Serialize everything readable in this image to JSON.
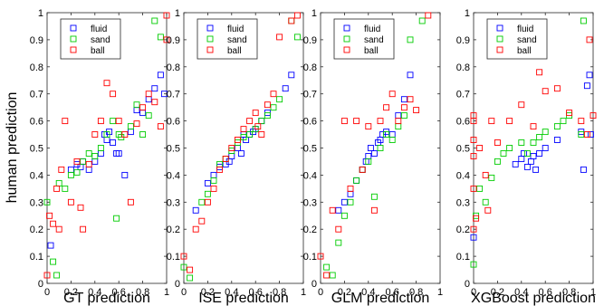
{
  "chart_data": [
    {
      "type": "scatter",
      "xlabel": "GT prediction",
      "ylabel": "human prediction",
      "xlim": [
        0,
        1
      ],
      "ylim": [
        0,
        1
      ],
      "xticks": [
        "0",
        "0.2",
        "0.4",
        "0.6",
        "0.8",
        "1"
      ],
      "yticks": [
        "0",
        "0.1",
        "0.2",
        "0.3",
        "0.4",
        "0.5",
        "0.6",
        "0.7",
        "0.8",
        "0.9",
        "1"
      ],
      "legend_position": "top-left",
      "series": [
        {
          "name": "fluid",
          "color": "#0000ff",
          "points": [
            [
              0.03,
              0.14
            ],
            [
              0.2,
              0.42
            ],
            [
              0.25,
              0.44
            ],
            [
              0.28,
              0.43
            ],
            [
              0.3,
              0.45
            ],
            [
              0.35,
              0.42
            ],
            [
              0.4,
              0.45
            ],
            [
              0.45,
              0.48
            ],
            [
              0.48,
              0.55
            ],
            [
              0.5,
              0.53
            ],
            [
              0.52,
              0.56
            ],
            [
              0.55,
              0.52
            ],
            [
              0.58,
              0.48
            ],
            [
              0.6,
              0.48
            ],
            [
              0.65,
              0.4
            ],
            [
              0.7,
              0.56
            ],
            [
              0.75,
              0.64
            ],
            [
              0.8,
              0.63
            ],
            [
              0.85,
              0.68
            ],
            [
              0.9,
              0.72
            ],
            [
              0.95,
              0.77
            ],
            [
              0.98,
              0.7
            ]
          ]
        },
        {
          "name": "sand",
          "color": "#00cc00",
          "points": [
            [
              0.0,
              0.3
            ],
            [
              0.05,
              0.08
            ],
            [
              0.08,
              0.03
            ],
            [
              0.1,
              0.37
            ],
            [
              0.15,
              0.35
            ],
            [
              0.2,
              0.4
            ],
            [
              0.25,
              0.41
            ],
            [
              0.3,
              0.45
            ],
            [
              0.35,
              0.48
            ],
            [
              0.4,
              0.47
            ],
            [
              0.45,
              0.5
            ],
            [
              0.5,
              0.55
            ],
            [
              0.55,
              0.6
            ],
            [
              0.58,
              0.24
            ],
            [
              0.6,
              0.55
            ],
            [
              0.62,
              0.54
            ],
            [
              0.7,
              0.58
            ],
            [
              0.75,
              0.66
            ],
            [
              0.8,
              0.55
            ],
            [
              0.85,
              0.62
            ],
            [
              0.9,
              0.97
            ],
            [
              0.95,
              0.91
            ]
          ]
        },
        {
          "name": "ball",
          "color": "#ff0000",
          "points": [
            [
              0.0,
              0.03
            ],
            [
              0.02,
              0.25
            ],
            [
              0.05,
              0.22
            ],
            [
              0.08,
              0.35
            ],
            [
              0.1,
              0.2
            ],
            [
              0.12,
              0.42
            ],
            [
              0.15,
              0.6
            ],
            [
              0.2,
              0.3
            ],
            [
              0.25,
              0.45
            ],
            [
              0.28,
              0.28
            ],
            [
              0.3,
              0.2
            ],
            [
              0.35,
              0.44
            ],
            [
              0.4,
              0.55
            ],
            [
              0.45,
              0.6
            ],
            [
              0.5,
              0.74
            ],
            [
              0.55,
              0.7
            ],
            [
              0.6,
              0.6
            ],
            [
              0.65,
              0.55
            ],
            [
              0.7,
              0.3
            ],
            [
              0.75,
              0.59
            ],
            [
              0.8,
              0.65
            ],
            [
              0.85,
              0.7
            ],
            [
              0.9,
              0.67
            ],
            [
              0.95,
              0.58
            ],
            [
              1.0,
              0.9
            ],
            [
              1.0,
              0.99
            ]
          ]
        }
      ]
    },
    {
      "type": "scatter",
      "xlabel": "ISE prediction",
      "ylabel": "",
      "xlim": [
        0,
        1
      ],
      "ylim": [
        0,
        1
      ],
      "xticks": [
        "0",
        "0.2",
        "0.4",
        "0.6",
        "0.8",
        "1"
      ],
      "yticks": [
        "0",
        "0.1",
        "0.2",
        "0.3",
        "0.4",
        "0.5",
        "0.6",
        "0.7",
        "0.8",
        "0.9",
        "1"
      ],
      "legend_position": "top-left",
      "series": [
        {
          "name": "fluid",
          "color": "#0000ff",
          "points": [
            [
              0.1,
              0.27
            ],
            [
              0.2,
              0.37
            ],
            [
              0.25,
              0.4
            ],
            [
              0.3,
              0.43
            ],
            [
              0.35,
              0.44
            ],
            [
              0.38,
              0.45
            ],
            [
              0.4,
              0.47
            ],
            [
              0.45,
              0.5
            ],
            [
              0.48,
              0.48
            ],
            [
              0.5,
              0.55
            ],
            [
              0.52,
              0.53
            ],
            [
              0.55,
              0.55
            ],
            [
              0.58,
              0.56
            ],
            [
              0.6,
              0.57
            ],
            [
              0.65,
              0.6
            ],
            [
              0.7,
              0.63
            ],
            [
              0.85,
              0.72
            ],
            [
              0.9,
              0.77
            ]
          ]
        },
        {
          "name": "sand",
          "color": "#00cc00",
          "points": [
            [
              0.0,
              0.06
            ],
            [
              0.05,
              0.02
            ],
            [
              0.15,
              0.3
            ],
            [
              0.2,
              0.33
            ],
            [
              0.25,
              0.38
            ],
            [
              0.3,
              0.44
            ],
            [
              0.35,
              0.46
            ],
            [
              0.4,
              0.49
            ],
            [
              0.45,
              0.52
            ],
            [
              0.5,
              0.54
            ],
            [
              0.55,
              0.55
            ],
            [
              0.6,
              0.57
            ],
            [
              0.65,
              0.6
            ],
            [
              0.7,
              0.62
            ],
            [
              0.75,
              0.65
            ],
            [
              0.8,
              0.68
            ],
            [
              0.9,
              0.97
            ],
            [
              0.95,
              0.91
            ]
          ]
        },
        {
          "name": "ball",
          "color": "#ff0000",
          "points": [
            [
              0.0,
              0.1
            ],
            [
              0.05,
              0.05
            ],
            [
              0.1,
              0.2
            ],
            [
              0.15,
              0.23
            ],
            [
              0.2,
              0.3
            ],
            [
              0.25,
              0.35
            ],
            [
              0.3,
              0.42
            ],
            [
              0.35,
              0.46
            ],
            [
              0.4,
              0.5
            ],
            [
              0.45,
              0.53
            ],
            [
              0.5,
              0.57
            ],
            [
              0.55,
              0.6
            ],
            [
              0.6,
              0.63
            ],
            [
              0.62,
              0.58
            ],
            [
              0.65,
              0.55
            ],
            [
              0.7,
              0.66
            ],
            [
              0.75,
              0.7
            ],
            [
              0.8,
              0.91
            ],
            [
              0.9,
              0.97
            ],
            [
              0.95,
              0.99
            ]
          ]
        }
      ]
    },
    {
      "type": "scatter",
      "xlabel": "GLM prediction",
      "ylabel": "",
      "xlim": [
        0,
        1
      ],
      "ylim": [
        0,
        1
      ],
      "xticks": [
        "0",
        "0.2",
        "0.4",
        "0.6",
        "0.8",
        "1"
      ],
      "yticks": [
        "0",
        "0.1",
        "0.2",
        "0.3",
        "0.4",
        "0.5",
        "0.6",
        "0.7",
        "0.8",
        "0.9",
        "1"
      ],
      "legend_position": "top-left",
      "series": [
        {
          "name": "fluid",
          "color": "#0000ff",
          "points": [
            [
              0.15,
              0.27
            ],
            [
              0.2,
              0.3
            ],
            [
              0.25,
              0.33
            ],
            [
              0.3,
              0.38
            ],
            [
              0.35,
              0.42
            ],
            [
              0.38,
              0.45
            ],
            [
              0.4,
              0.47
            ],
            [
              0.42,
              0.5
            ],
            [
              0.45,
              0.48
            ],
            [
              0.48,
              0.52
            ],
            [
              0.5,
              0.53
            ],
            [
              0.52,
              0.55
            ],
            [
              0.55,
              0.56
            ],
            [
              0.6,
              0.55
            ],
            [
              0.65,
              0.62
            ],
            [
              0.7,
              0.68
            ],
            [
              0.75,
              0.77
            ]
          ]
        },
        {
          "name": "sand",
          "color": "#00cc00",
          "points": [
            [
              0.05,
              0.06
            ],
            [
              0.1,
              0.03
            ],
            [
              0.15,
              0.15
            ],
            [
              0.2,
              0.25
            ],
            [
              0.25,
              0.3
            ],
            [
              0.3,
              0.38
            ],
            [
              0.35,
              0.42
            ],
            [
              0.4,
              0.45
            ],
            [
              0.45,
              0.32
            ],
            [
              0.5,
              0.5
            ],
            [
              0.55,
              0.55
            ],
            [
              0.6,
              0.53
            ],
            [
              0.65,
              0.58
            ],
            [
              0.7,
              0.62
            ],
            [
              0.75,
              0.9
            ],
            [
              0.85,
              0.97
            ]
          ]
        },
        {
          "name": "ball",
          "color": "#ff0000",
          "points": [
            [
              0.0,
              0.1
            ],
            [
              0.05,
              0.03
            ],
            [
              0.1,
              0.27
            ],
            [
              0.15,
              0.2
            ],
            [
              0.2,
              0.6
            ],
            [
              0.25,
              0.35
            ],
            [
              0.3,
              0.6
            ],
            [
              0.35,
              0.42
            ],
            [
              0.4,
              0.58
            ],
            [
              0.45,
              0.27
            ],
            [
              0.5,
              0.6
            ],
            [
              0.55,
              0.65
            ],
            [
              0.6,
              0.7
            ],
            [
              0.65,
              0.6
            ],
            [
              0.7,
              0.65
            ],
            [
              0.75,
              0.68
            ],
            [
              0.8,
              0.64
            ],
            [
              0.9,
              0.99
            ]
          ]
        }
      ]
    },
    {
      "type": "scatter",
      "xlabel": "XGBoost prediction",
      "ylabel": "",
      "xlim": [
        0,
        1
      ],
      "ylim": [
        0,
        1
      ],
      "xticks": [
        "0",
        "0.2",
        "0.4",
        "0.6",
        "0.8",
        "1"
      ],
      "yticks": [
        "0",
        "0.1",
        "0.2",
        "0.3",
        "0.4",
        "0.5",
        "0.6",
        "0.7",
        "0.8",
        "0.9",
        "1"
      ],
      "legend_position": "top-left",
      "series": [
        {
          "name": "fluid",
          "color": "#0000ff",
          "points": [
            [
              0.0,
              0.17
            ],
            [
              0.35,
              0.44
            ],
            [
              0.4,
              0.46
            ],
            [
              0.42,
              0.48
            ],
            [
              0.45,
              0.43
            ],
            [
              0.48,
              0.45
            ],
            [
              0.5,
              0.47
            ],
            [
              0.52,
              0.42
            ],
            [
              0.55,
              0.48
            ],
            [
              0.6,
              0.5
            ],
            [
              0.7,
              0.53
            ],
            [
              0.9,
              0.56
            ],
            [
              0.92,
              0.42
            ],
            [
              0.95,
              0.73
            ],
            [
              0.97,
              0.77
            ],
            [
              0.98,
              0.55
            ]
          ]
        },
        {
          "name": "sand",
          "color": "#00cc00",
          "points": [
            [
              0.0,
              0.07
            ],
            [
              0.02,
              0.25
            ],
            [
              0.05,
              0.35
            ],
            [
              0.1,
              0.3
            ],
            [
              0.15,
              0.39
            ],
            [
              0.2,
              0.45
            ],
            [
              0.25,
              0.48
            ],
            [
              0.3,
              0.5
            ],
            [
              0.4,
              0.52
            ],
            [
              0.45,
              0.48
            ],
            [
              0.5,
              0.52
            ],
            [
              0.55,
              0.54
            ],
            [
              0.6,
              0.56
            ],
            [
              0.7,
              0.58
            ],
            [
              0.75,
              0.6
            ],
            [
              0.8,
              0.62
            ],
            [
              0.9,
              0.55
            ],
            [
              0.92,
              0.97
            ]
          ]
        },
        {
          "name": "ball",
          "color": "#ff0000",
          "points": [
            [
              0.0,
              0.2
            ],
            [
              0.0,
              0.35
            ],
            [
              0.0,
              0.47
            ],
            [
              0.0,
              0.53
            ],
            [
              0.0,
              0.6
            ],
            [
              0.0,
              0.62
            ],
            [
              0.02,
              0.24
            ],
            [
              0.05,
              0.5
            ],
            [
              0.1,
              0.4
            ],
            [
              0.12,
              0.27
            ],
            [
              0.15,
              0.6
            ],
            [
              0.2,
              0.52
            ],
            [
              0.3,
              0.6
            ],
            [
              0.4,
              0.66
            ],
            [
              0.5,
              0.58
            ],
            [
              0.55,
              0.78
            ],
            [
              0.6,
              0.71
            ],
            [
              0.7,
              0.72
            ],
            [
              0.8,
              0.63
            ],
            [
              0.9,
              0.6
            ],
            [
              0.95,
              0.55
            ],
            [
              0.97,
              0.9
            ],
            [
              1.0,
              0.62
            ]
          ]
        }
      ]
    }
  ]
}
